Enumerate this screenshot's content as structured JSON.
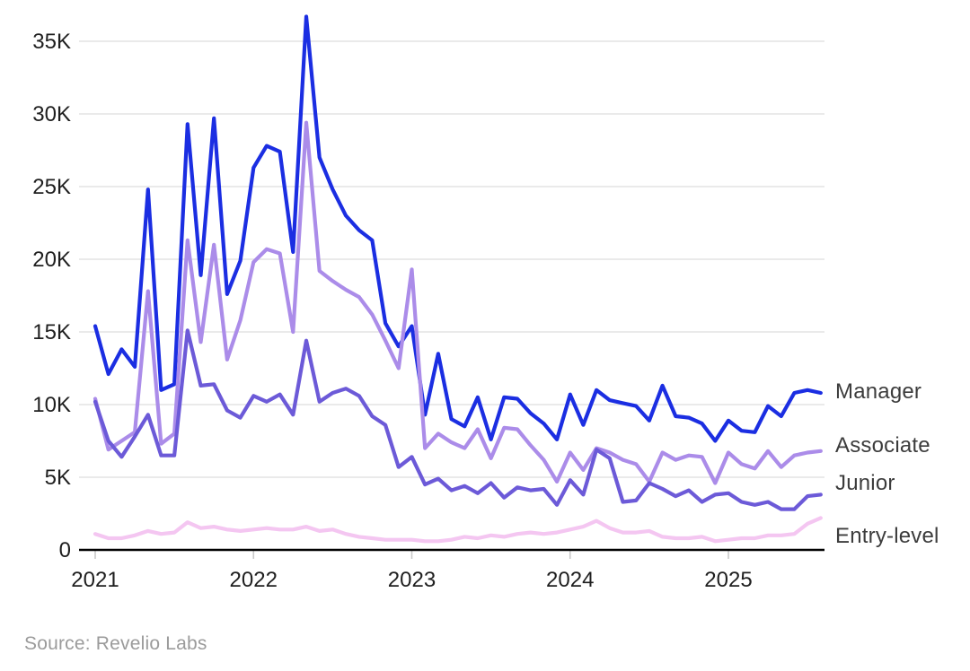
{
  "chart_data": {
    "type": "line",
    "title": "",
    "xlabel": "",
    "ylabel": "",
    "unit": "thousands of postings",
    "grid": "horizontal",
    "legend_position": "right-of-line-ends",
    "ylim_thousands": [
      0,
      37
    ],
    "y_ticks_thousands": [
      0,
      5,
      10,
      15,
      20,
      25,
      30,
      35
    ],
    "y_tick_labels": [
      "0",
      "5K",
      "10K",
      "15K",
      "20K",
      "25K",
      "30K",
      "35K"
    ],
    "x_tick_labels": [
      "2021",
      "2022",
      "2023",
      "2024",
      "2025"
    ],
    "x": [
      "2021-01",
      "2021-02",
      "2021-03",
      "2021-04",
      "2021-05",
      "2021-06",
      "2021-07",
      "2021-08",
      "2021-09",
      "2021-10",
      "2021-11",
      "2021-12",
      "2022-01",
      "2022-02",
      "2022-03",
      "2022-04",
      "2022-05",
      "2022-06",
      "2022-07",
      "2022-08",
      "2022-09",
      "2022-10",
      "2022-11",
      "2022-12",
      "2023-01",
      "2023-02",
      "2023-03",
      "2023-04",
      "2023-05",
      "2023-06",
      "2023-07",
      "2023-08",
      "2023-09",
      "2023-10",
      "2023-11",
      "2023-12",
      "2024-01",
      "2024-02",
      "2024-03",
      "2024-04",
      "2024-05",
      "2024-06",
      "2024-07",
      "2024-08",
      "2024-09",
      "2024-10",
      "2024-11",
      "2024-12",
      "2025-01",
      "2025-02",
      "2025-03",
      "2025-04",
      "2025-05",
      "2025-06",
      "2025-07",
      "2025-08"
    ],
    "series": [
      {
        "name": "Manager",
        "color": "#1b2ee2",
        "values_thousands": [
          15.4,
          12.1,
          13.8,
          12.6,
          24.8,
          11.0,
          11.4,
          29.3,
          18.9,
          29.7,
          17.6,
          19.9,
          26.3,
          27.8,
          27.4,
          20.5,
          36.7,
          27.0,
          24.8,
          23.0,
          22.0,
          21.3,
          15.6,
          14.0,
          15.4,
          9.3,
          13.5,
          9.0,
          8.5,
          10.5,
          7.6,
          10.5,
          10.4,
          9.4,
          8.7,
          7.6,
          10.7,
          8.6,
          11.0,
          10.3,
          10.1,
          9.9,
          8.9,
          11.3,
          9.2,
          9.1,
          8.7,
          7.5,
          8.9,
          8.2,
          8.1,
          9.9,
          9.2,
          10.8,
          11.0,
          10.8
        ]
      },
      {
        "name": "Associate",
        "color": "#ab8ce9",
        "values_thousands": [
          10.4,
          6.9,
          7.5,
          8.1,
          17.8,
          7.3,
          8.0,
          21.3,
          14.3,
          21.0,
          13.1,
          15.8,
          19.8,
          20.7,
          20.4,
          15.0,
          29.4,
          19.2,
          18.5,
          17.9,
          17.4,
          16.2,
          14.4,
          12.5,
          19.3,
          7.0,
          8.0,
          7.4,
          7.0,
          8.3,
          6.3,
          8.4,
          8.3,
          7.2,
          6.2,
          4.7,
          6.7,
          5.5,
          7.0,
          6.7,
          6.2,
          5.9,
          4.7,
          6.7,
          6.2,
          6.5,
          6.4,
          4.6,
          6.7,
          5.9,
          5.6,
          6.8,
          5.7,
          6.5,
          6.7,
          6.8
        ]
      },
      {
        "name": "Junior",
        "color": "#6c5ad8",
        "values_thousands": [
          10.2,
          7.5,
          6.4,
          7.8,
          9.3,
          6.5,
          6.5,
          15.1,
          11.3,
          11.4,
          9.6,
          9.1,
          10.6,
          10.2,
          10.7,
          9.3,
          14.4,
          10.2,
          10.8,
          11.1,
          10.6,
          9.2,
          8.6,
          5.7,
          6.4,
          4.5,
          4.9,
          4.1,
          4.4,
          3.9,
          4.6,
          3.6,
          4.3,
          4.1,
          4.2,
          3.1,
          4.8,
          3.8,
          6.9,
          6.3,
          3.3,
          3.4,
          4.6,
          4.2,
          3.7,
          4.1,
          3.3,
          3.8,
          3.9,
          3.3,
          3.1,
          3.3,
          2.8,
          2.8,
          3.7,
          3.8
        ]
      },
      {
        "name": "Entry-level",
        "color": "#f4c6f1",
        "values_thousands": [
          1.1,
          0.8,
          0.8,
          1.0,
          1.3,
          1.1,
          1.2,
          1.9,
          1.5,
          1.6,
          1.4,
          1.3,
          1.4,
          1.5,
          1.4,
          1.4,
          1.6,
          1.3,
          1.4,
          1.1,
          0.9,
          0.8,
          0.7,
          0.7,
          0.7,
          0.6,
          0.6,
          0.7,
          0.9,
          0.8,
          1.0,
          0.9,
          1.1,
          1.2,
          1.1,
          1.2,
          1.4,
          1.6,
          2.0,
          1.5,
          1.2,
          1.2,
          1.3,
          0.9,
          0.8,
          0.8,
          0.9,
          0.6,
          0.7,
          0.8,
          0.8,
          1.0,
          1.0,
          1.1,
          1.8,
          2.2
        ]
      }
    ]
  },
  "labels": {
    "source": "Source: Revelio Labs"
  },
  "colors": {
    "background": "#ffffff",
    "gridline": "#e4e4e4",
    "axis": "#000000",
    "tick_mark": "#c9c9c9",
    "tick_text": "#1f1f1f",
    "series_label_text": "#3c3c3c",
    "source_text": "#9b9b9b"
  }
}
